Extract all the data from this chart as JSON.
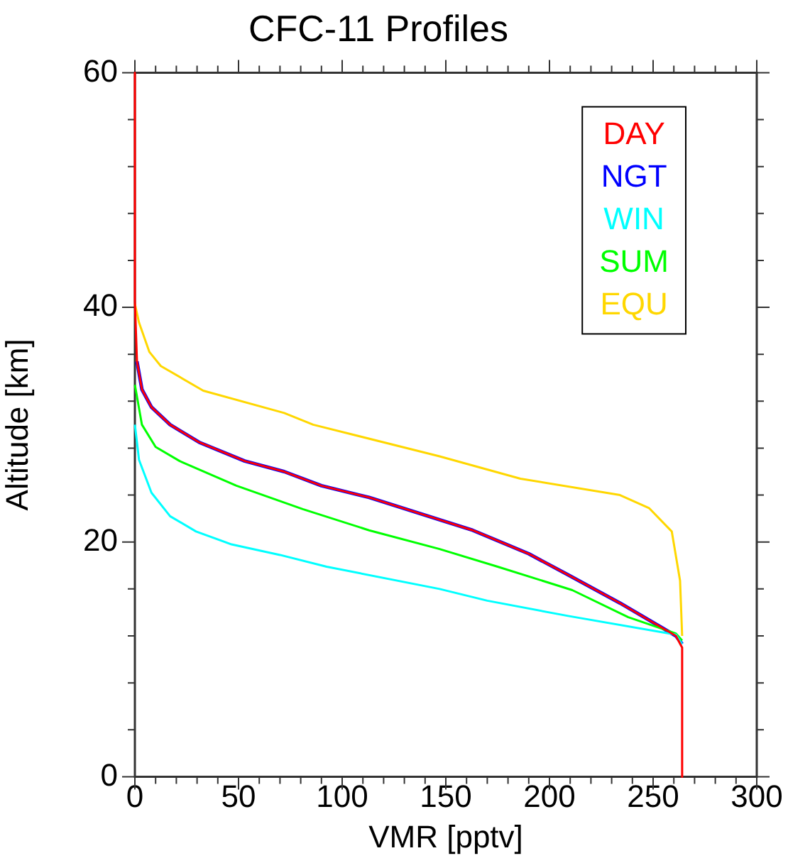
{
  "chart_data": {
    "type": "line",
    "title": "CFC-11 Profiles",
    "xlabel": "VMR [pptv]",
    "ylabel": "Altitude [km]",
    "xlim": [
      0,
      300
    ],
    "xticks": [
      0,
      50,
      100,
      150,
      200,
      250,
      300
    ],
    "ylim": [
      0,
      60
    ],
    "yticks": [
      0,
      20,
      40,
      60
    ],
    "grid": false,
    "legend": "top right",
    "marker": "none",
    "line_style": "solid",
    "series": [
      {
        "name": "DAY",
        "color": "#ff0000",
        "x": [
          0,
          0,
          1,
          3.4,
          8,
          17,
          31,
          53,
          72,
          90,
          113,
          147,
          163,
          190,
          209,
          234,
          261,
          264,
          264
        ],
        "values": [
          60,
          40.5,
          35.4,
          33,
          31.5,
          30,
          28.5,
          26.9,
          26,
          24.8,
          23.8,
          21.9,
          21,
          19,
          17.2,
          14.8,
          12,
          11,
          0
        ]
      },
      {
        "name": "NGT",
        "color": "#0000ff",
        "x": [
          1,
          3.4,
          8,
          17,
          31,
          53,
          72,
          90,
          113,
          147,
          163,
          190,
          209,
          234,
          261,
          264
        ],
        "values": [
          35.4,
          33,
          31.5,
          30,
          28.5,
          26.9,
          26,
          24.8,
          23.8,
          21.9,
          21,
          19,
          17.2,
          14.8,
          12,
          11.3
        ]
      },
      {
        "name": "WIN",
        "color": "#00ffff",
        "x": [
          0,
          2,
          8,
          17,
          29.5,
          46.6,
          70,
          92.5,
          147,
          170,
          209,
          261,
          264
        ],
        "values": [
          30,
          27,
          24.2,
          22.2,
          20.9,
          19.8,
          18.9,
          17.9,
          16,
          15,
          13.7,
          12.1,
          11.3
        ]
      },
      {
        "name": "SUM",
        "color": "#00ff00",
        "x": [
          0,
          3.4,
          10,
          21.6,
          49,
          81,
          113,
          147,
          175,
          211,
          238,
          261,
          264
        ],
        "values": [
          33.4,
          30,
          28.1,
          26.9,
          24.8,
          22.8,
          21,
          19.4,
          17.9,
          15.9,
          13.6,
          12.2,
          11.6
        ]
      },
      {
        "name": "EQU",
        "color": "#ffd700",
        "x": [
          0,
          2,
          7,
          12.5,
          33,
          72,
          86,
          147,
          186,
          234,
          248,
          259,
          263,
          264
        ],
        "values": [
          40.3,
          38.7,
          36.2,
          35,
          32.9,
          31,
          30,
          27.3,
          25.4,
          24,
          22.9,
          20.9,
          16.7,
          12
        ]
      }
    ]
  }
}
